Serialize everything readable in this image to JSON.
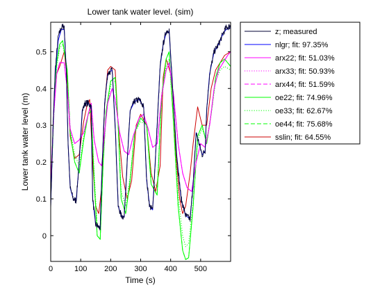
{
  "chart_data": {
    "type": "line",
    "title": "Lower tank water level. (sim)",
    "xlabel": "Time (s)",
    "ylabel": "Lower tank water level (m)",
    "xlim": [
      0,
      600
    ],
    "ylim": [
      -0.07,
      0.58
    ],
    "xticks": [
      0,
      100,
      200,
      300,
      400,
      500
    ],
    "yticks": [
      0,
      0.1,
      0.2,
      0.3,
      0.4,
      0.5
    ],
    "xtick_labels": [
      "0",
      "100",
      "200",
      "300",
      "400",
      "500"
    ],
    "ytick_labels": [
      "0",
      "0.1",
      "0.2",
      "0.3",
      "0.4",
      "0.5"
    ],
    "grid": false,
    "legend_position": "outside-right-top",
    "series": [
      {
        "name": "z; measured",
        "color": "#000033",
        "dash": "solid",
        "noisy": true,
        "x": [
          0,
          8,
          15,
          25,
          35,
          45,
          52,
          58,
          65,
          75,
          85,
          95,
          105,
          115,
          125,
          135,
          140,
          150,
          165,
          172,
          180,
          190,
          205,
          215,
          225,
          235,
          245,
          255,
          265,
          280,
          295,
          310,
          320,
          330,
          340,
          355,
          365,
          375,
          385,
          395,
          405,
          420,
          435,
          450,
          465,
          475,
          485,
          495,
          505,
          515,
          520,
          530,
          545,
          560,
          575,
          585,
          600
        ],
        "y": [
          0.08,
          0.3,
          0.45,
          0.54,
          0.565,
          0.57,
          0.45,
          0.25,
          0.13,
          0.1,
          0.095,
          0.2,
          0.34,
          0.36,
          0.36,
          0.35,
          0.1,
          0.03,
          0.02,
          0.2,
          0.36,
          0.44,
          0.45,
          0.3,
          0.08,
          0.055,
          0.05,
          0.2,
          0.34,
          0.365,
          0.37,
          0.35,
          0.15,
          0.08,
          0.07,
          0.3,
          0.46,
          0.52,
          0.555,
          0.56,
          0.42,
          0.22,
          0.1,
          0.055,
          0.045,
          0.14,
          0.28,
          0.25,
          0.22,
          0.23,
          0.34,
          0.44,
          0.5,
          0.52,
          0.55,
          0.565,
          0.57
        ]
      },
      {
        "name": "nlgr; fit: 97.35%",
        "color": "#0000ff",
        "dash": "solid",
        "x": [
          0,
          8,
          15,
          25,
          35,
          45,
          52,
          58,
          65,
          75,
          85,
          95,
          105,
          115,
          125,
          135,
          140,
          150,
          165,
          172,
          180,
          190,
          205,
          215,
          225,
          235,
          245,
          255,
          265,
          280,
          295,
          310,
          320,
          330,
          340,
          355,
          365,
          375,
          385,
          395,
          405,
          420,
          435,
          450,
          465,
          475,
          485,
          495,
          505,
          515,
          520,
          530,
          545,
          560,
          575,
          585,
          600
        ],
        "y": [
          0.08,
          0.3,
          0.44,
          0.53,
          0.56,
          0.56,
          0.45,
          0.25,
          0.13,
          0.1,
          0.095,
          0.2,
          0.34,
          0.36,
          0.36,
          0.35,
          0.1,
          0.03,
          0.02,
          0.2,
          0.36,
          0.44,
          0.45,
          0.3,
          0.08,
          0.055,
          0.05,
          0.2,
          0.34,
          0.365,
          0.37,
          0.35,
          0.15,
          0.08,
          0.07,
          0.3,
          0.46,
          0.52,
          0.55,
          0.555,
          0.42,
          0.22,
          0.1,
          0.055,
          0.045,
          0.14,
          0.28,
          0.25,
          0.22,
          0.23,
          0.34,
          0.44,
          0.5,
          0.52,
          0.55,
          0.56,
          0.565
        ]
      },
      {
        "name": "arx22; fit: 51.03%",
        "color": "#ff00ff",
        "dash": "solid",
        "x": [
          0,
          10,
          20,
          30,
          45,
          55,
          65,
          80,
          95,
          110,
          125,
          135,
          145,
          160,
          170,
          180,
          190,
          205,
          215,
          230,
          245,
          260,
          275,
          295,
          310,
          325,
          340,
          355,
          370,
          385,
          395,
          410,
          425,
          440,
          455,
          470,
          485,
          500,
          515,
          530,
          545,
          560,
          575,
          590,
          600
        ],
        "y": [
          0.13,
          0.33,
          0.44,
          0.47,
          0.47,
          0.4,
          0.29,
          0.25,
          0.26,
          0.28,
          0.33,
          0.36,
          0.26,
          0.2,
          0.19,
          0.28,
          0.36,
          0.4,
          0.37,
          0.28,
          0.23,
          0.22,
          0.27,
          0.32,
          0.33,
          0.29,
          0.24,
          0.25,
          0.38,
          0.45,
          0.47,
          0.38,
          0.25,
          0.17,
          0.13,
          0.12,
          0.2,
          0.25,
          0.24,
          0.3,
          0.4,
          0.45,
          0.47,
          0.49,
          0.5
        ]
      },
      {
        "name": "arx33; fit: 50.93%",
        "color": "#ff00ff",
        "dash": "dotted",
        "x": [
          0,
          10,
          20,
          30,
          45,
          55,
          65,
          80,
          95,
          110,
          125,
          135,
          145,
          160,
          170,
          180,
          190,
          205,
          215,
          230,
          245,
          260,
          275,
          295,
          310,
          325,
          340,
          355,
          370,
          385,
          395,
          410,
          425,
          440,
          455,
          470,
          485,
          500,
          515,
          530,
          545,
          560,
          575,
          590,
          600
        ],
        "y": [
          0.13,
          0.33,
          0.44,
          0.47,
          0.47,
          0.4,
          0.29,
          0.25,
          0.26,
          0.28,
          0.33,
          0.36,
          0.26,
          0.2,
          0.19,
          0.28,
          0.36,
          0.4,
          0.37,
          0.28,
          0.23,
          0.22,
          0.27,
          0.32,
          0.33,
          0.29,
          0.24,
          0.25,
          0.38,
          0.45,
          0.47,
          0.38,
          0.25,
          0.17,
          0.13,
          0.12,
          0.2,
          0.25,
          0.24,
          0.3,
          0.4,
          0.45,
          0.47,
          0.49,
          0.5
        ]
      },
      {
        "name": "arx44; fit: 51.59%",
        "color": "#ff00ff",
        "dash": "dashed",
        "x": [
          0,
          10,
          20,
          30,
          45,
          55,
          65,
          80,
          95,
          110,
          125,
          135,
          145,
          160,
          170,
          180,
          190,
          205,
          215,
          230,
          245,
          260,
          275,
          295,
          310,
          325,
          340,
          355,
          370,
          385,
          395,
          410,
          425,
          440,
          455,
          470,
          485,
          500,
          515,
          530,
          545,
          560,
          575,
          590,
          600
        ],
        "y": [
          0.13,
          0.33,
          0.44,
          0.47,
          0.47,
          0.4,
          0.29,
          0.25,
          0.26,
          0.28,
          0.33,
          0.36,
          0.26,
          0.2,
          0.19,
          0.28,
          0.36,
          0.4,
          0.37,
          0.28,
          0.23,
          0.22,
          0.27,
          0.32,
          0.33,
          0.29,
          0.24,
          0.25,
          0.38,
          0.45,
          0.47,
          0.38,
          0.25,
          0.17,
          0.13,
          0.12,
          0.2,
          0.25,
          0.24,
          0.3,
          0.4,
          0.45,
          0.47,
          0.49,
          0.5
        ]
      },
      {
        "name": "oe22; fit: 74.96%",
        "color": "#00ff00",
        "dash": "solid",
        "x": [
          0,
          10,
          20,
          30,
          40,
          55,
          65,
          80,
          95,
          110,
          125,
          135,
          145,
          155,
          165,
          175,
          185,
          200,
          215,
          225,
          235,
          250,
          265,
          280,
          300,
          320,
          335,
          355,
          370,
          385,
          395,
          410,
          425,
          440,
          450,
          460,
          475,
          490,
          505,
          520,
          535,
          550,
          565,
          580,
          600
        ],
        "y": [
          0.1,
          0.33,
          0.47,
          0.52,
          0.53,
          0.45,
          0.28,
          0.2,
          0.17,
          0.26,
          0.33,
          0.34,
          0.15,
          0.0,
          -0.01,
          0.2,
          0.34,
          0.42,
          0.43,
          0.3,
          0.1,
          0.06,
          0.15,
          0.28,
          0.32,
          0.3,
          0.14,
          0.11,
          0.38,
          0.48,
          0.5,
          0.3,
          0.08,
          -0.04,
          -0.065,
          -0.06,
          0.08,
          0.27,
          0.3,
          0.25,
          0.33,
          0.43,
          0.47,
          0.48,
          0.46
        ]
      },
      {
        "name": "oe33; fit: 62.67%",
        "color": "#00ff00",
        "dash": "dotted",
        "x": [
          0,
          10,
          20,
          30,
          40,
          55,
          65,
          80,
          95,
          110,
          125,
          135,
          145,
          155,
          165,
          175,
          185,
          200,
          215,
          225,
          235,
          250,
          265,
          280,
          300,
          320,
          335,
          355,
          370,
          385,
          395,
          410,
          425,
          440,
          450,
          460,
          475,
          490,
          505,
          520,
          535,
          550,
          565,
          580,
          600
        ],
        "y": [
          0.11,
          0.32,
          0.46,
          0.51,
          0.52,
          0.45,
          0.29,
          0.22,
          0.19,
          0.27,
          0.33,
          0.34,
          0.17,
          0.03,
          0.02,
          0.2,
          0.33,
          0.41,
          0.42,
          0.3,
          0.12,
          0.08,
          0.16,
          0.28,
          0.31,
          0.3,
          0.16,
          0.13,
          0.37,
          0.46,
          0.48,
          0.31,
          0.11,
          0.0,
          -0.03,
          -0.02,
          0.09,
          0.26,
          0.29,
          0.26,
          0.33,
          0.42,
          0.45,
          0.46,
          0.45
        ]
      },
      {
        "name": "oe44; fit: 75.68%",
        "color": "#00ff00",
        "dash": "dashed",
        "x": [
          0,
          10,
          20,
          30,
          40,
          55,
          65,
          80,
          95,
          110,
          125,
          135,
          145,
          155,
          165,
          175,
          185,
          200,
          215,
          225,
          235,
          250,
          265,
          280,
          300,
          320,
          335,
          355,
          370,
          385,
          395,
          410,
          425,
          440,
          450,
          460,
          475,
          490,
          505,
          520,
          535,
          550,
          565,
          580,
          600
        ],
        "y": [
          0.1,
          0.33,
          0.47,
          0.52,
          0.53,
          0.45,
          0.28,
          0.2,
          0.17,
          0.26,
          0.33,
          0.34,
          0.15,
          0.0,
          -0.01,
          0.2,
          0.34,
          0.42,
          0.43,
          0.3,
          0.1,
          0.06,
          0.15,
          0.28,
          0.32,
          0.3,
          0.14,
          0.11,
          0.38,
          0.48,
          0.5,
          0.3,
          0.08,
          -0.04,
          -0.065,
          -0.06,
          0.08,
          0.27,
          0.3,
          0.25,
          0.33,
          0.43,
          0.47,
          0.48,
          0.46
        ]
      },
      {
        "name": "sslin; fit: 64.55%",
        "color": "#cc0000",
        "dash": "solid",
        "x": [
          0,
          10,
          20,
          30,
          45,
          55,
          65,
          80,
          95,
          110,
          120,
          130,
          140,
          150,
          160,
          170,
          180,
          190,
          200,
          215,
          225,
          240,
          255,
          270,
          285,
          300,
          320,
          335,
          350,
          365,
          375,
          385,
          400,
          410,
          420,
          430,
          440,
          450,
          465,
          475,
          490,
          505,
          520,
          535,
          550,
          565,
          580,
          600
        ],
        "y": [
          0.12,
          0.34,
          0.44,
          0.46,
          0.5,
          0.43,
          0.27,
          0.21,
          0.22,
          0.31,
          0.35,
          0.37,
          0.2,
          0.08,
          0.06,
          0.13,
          0.36,
          0.45,
          0.46,
          0.45,
          0.3,
          0.16,
          0.1,
          0.15,
          0.3,
          0.33,
          0.3,
          0.17,
          0.12,
          0.19,
          0.43,
          0.48,
          0.44,
          0.31,
          0.2,
          0.1,
          0.06,
          0.08,
          0.17,
          0.25,
          0.35,
          0.3,
          0.3,
          0.4,
          0.45,
          0.47,
          0.49,
          0.5
        ]
      }
    ]
  }
}
